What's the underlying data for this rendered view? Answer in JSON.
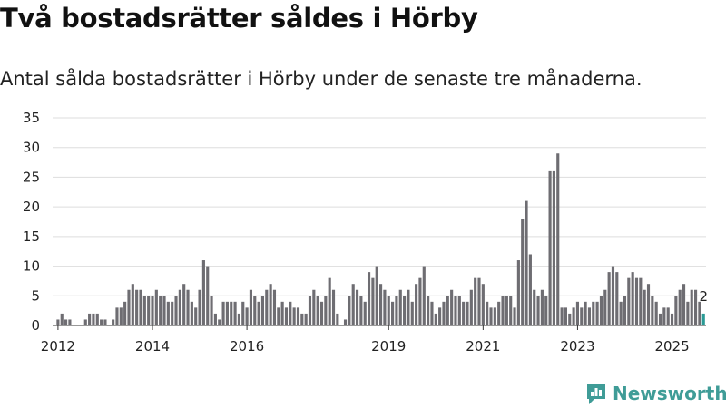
{
  "title": "Två bostadsrätter såldes i Hörby",
  "subtitle": "Antal sålda bostadsrätter i Hörby under de senaste tre månaderna.",
  "brand": {
    "name": "Newsworthy",
    "icon": "newsworthy-logo-icon"
  },
  "colors": {
    "bar": "#6e6d72",
    "highlight": "#2a9a95",
    "grid": "#dddddd",
    "axis": "#333333",
    "brand": "#3f9c97"
  },
  "chart_data": {
    "type": "bar",
    "title": "Två bostadsrätter såldes i Hörby",
    "xlabel": "",
    "ylabel": "",
    "x_start": "2011-12",
    "x_unit": "month",
    "ylim": [
      0,
      35
    ],
    "yticks": [
      0,
      5,
      10,
      15,
      20,
      25,
      30,
      35
    ],
    "xticks": [
      {
        "label": "2012",
        "month": "2012-01"
      },
      {
        "label": "2014",
        "month": "2014-01"
      },
      {
        "label": "2016",
        "month": "2016-01"
      },
      {
        "label": "2019",
        "month": "2019-01"
      },
      {
        "label": "2021",
        "month": "2021-01"
      },
      {
        "label": "2023",
        "month": "2023-01"
      },
      {
        "label": "2025",
        "month": "2025-01"
      }
    ],
    "grid": true,
    "highlight_last": true,
    "last_value_label": "2",
    "values": [
      0,
      1,
      2,
      1,
      1,
      0,
      0,
      0,
      1,
      2,
      2,
      2,
      1,
      1,
      0,
      1,
      3,
      3,
      4,
      6,
      7,
      6,
      6,
      5,
      5,
      5,
      6,
      5,
      5,
      4,
      4,
      5,
      6,
      7,
      6,
      4,
      3,
      6,
      11,
      10,
      5,
      2,
      1,
      4,
      4,
      4,
      4,
      2,
      4,
      3,
      6,
      5,
      4,
      5,
      6,
      7,
      6,
      3,
      4,
      3,
      4,
      3,
      3,
      2,
      2,
      5,
      6,
      5,
      4,
      5,
      8,
      6,
      2,
      0,
      1,
      5,
      7,
      6,
      5,
      4,
      9,
      8,
      10,
      7,
      6,
      5,
      4,
      5,
      6,
      5,
      6,
      4,
      7,
      8,
      10,
      5,
      4,
      2,
      3,
      4,
      5,
      6,
      5,
      5,
      4,
      4,
      6,
      8,
      8,
      7,
      4,
      3,
      3,
      4,
      5,
      5,
      5,
      3,
      11,
      18,
      21,
      12,
      6,
      5,
      6,
      5,
      26,
      26,
      29,
      3,
      3,
      2,
      3,
      4,
      3,
      4,
      3,
      4,
      4,
      5,
      6,
      9,
      10,
      9,
      4,
      5,
      8,
      9,
      8,
      8,
      6,
      7,
      5,
      4,
      2,
      3,
      3,
      2,
      5,
      6,
      7,
      4,
      6,
      6,
      4,
      2
    ]
  }
}
